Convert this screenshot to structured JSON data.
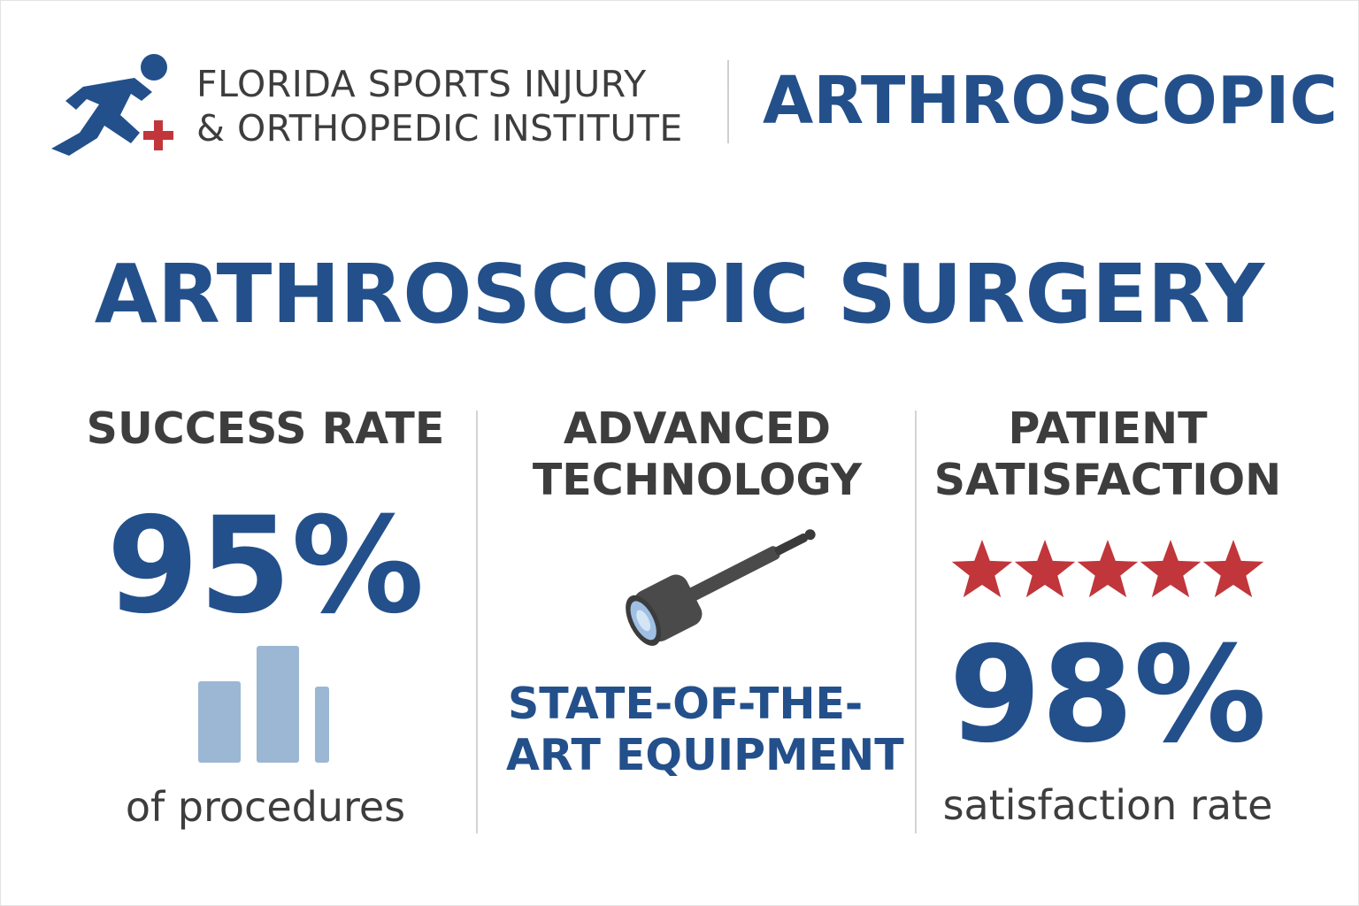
{
  "header": {
    "logo_icon": "runner-with-medical-cross-icon",
    "org_name_line1": "FLORIDA SPORTS INJURY",
    "org_name_line2": "& ORTHOPEDIC INSTITUTE",
    "title": "ARTHROSCOPIC"
  },
  "main_title": "ARTHROSCOPIC SURGERY",
  "columns": [
    {
      "heading_line1": "SUCCESS RATE",
      "stat": "95%",
      "icon": "bar-chart-icon",
      "caption": "of procedures"
    },
    {
      "heading_line1": "ADVANCED",
      "heading_line2": "TECHNOLOGY",
      "icon": "arthroscope-icon",
      "caption_line1": "STATE-OF-THE-",
      "caption_line2": "ART EQUIPMENT"
    },
    {
      "heading_line1": "PATIENT",
      "heading_line2": "SATISFACTION",
      "icon": "star-icon",
      "stars": 5,
      "stat": "98%",
      "caption": "satisfaction rate"
    }
  ],
  "colors": {
    "brand_blue": "#23508b",
    "text_gray": "#3d3d3d",
    "accent_red": "#c0363b",
    "bar_blue": "#9bb7d3"
  }
}
